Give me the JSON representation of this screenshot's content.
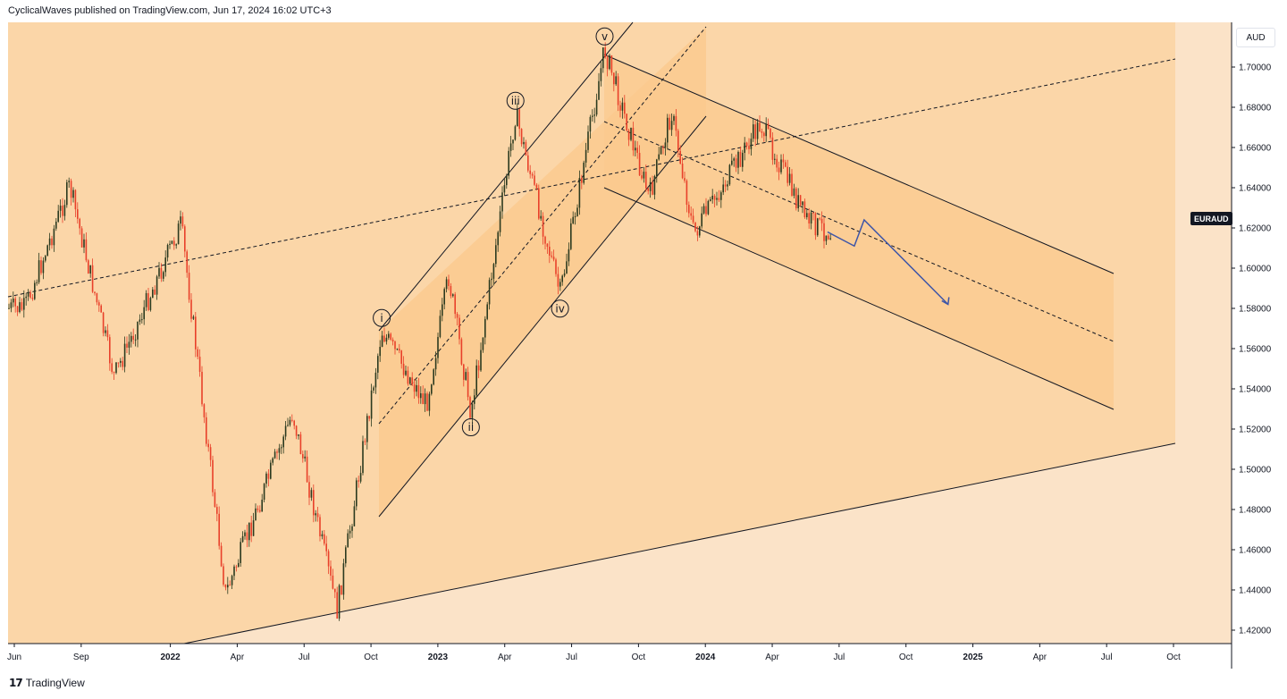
{
  "header": {
    "text": "CyclicalWaves published on TradingView.com, Jun 17, 2024 16:02 UTC+3"
  },
  "footer": {
    "logo_glyph": "17",
    "brand": "TradingView"
  },
  "price_axis": {
    "currency": "AUD",
    "symbol_tag": "EURAUD",
    "labels": [
      "1.70000",
      "1.68000",
      "1.66000",
      "1.64000",
      "1.62000",
      "1.60000",
      "1.58000",
      "1.56000",
      "1.54000",
      "1.52000",
      "1.50000",
      "1.48000",
      "1.46000",
      "1.44000",
      "1.42000"
    ]
  },
  "time_axis": {
    "labels": [
      {
        "text": "Jun",
        "bold": false
      },
      {
        "text": "Sep",
        "bold": false
      },
      {
        "text": "2022",
        "bold": true
      },
      {
        "text": "Apr",
        "bold": false
      },
      {
        "text": "Jul",
        "bold": false
      },
      {
        "text": "Oct",
        "bold": false
      },
      {
        "text": "2023",
        "bold": true
      },
      {
        "text": "Apr",
        "bold": false
      },
      {
        "text": "Jul",
        "bold": false
      },
      {
        "text": "Oct",
        "bold": false
      },
      {
        "text": "2024",
        "bold": true
      },
      {
        "text": "Apr",
        "bold": false
      },
      {
        "text": "Jul",
        "bold": false
      },
      {
        "text": "Oct",
        "bold": false
      },
      {
        "text": "2025",
        "bold": true
      },
      {
        "text": "Apr",
        "bold": false
      },
      {
        "text": "Jul",
        "bold": false
      },
      {
        "text": "Oct",
        "bold": false
      }
    ]
  },
  "wave_labels": [
    "i",
    "ii",
    "iii",
    "iv",
    "v"
  ],
  "colors": {
    "background_light": "#fbe3c8",
    "background_mid": "#fbd6a8",
    "channel_fill": "#fbc98d",
    "candle_up": "#2b3a1f",
    "candle_down": "#e8402a",
    "projection_arrow": "#3d55a8",
    "line": "#131722"
  },
  "chart_data": {
    "type": "candlestick",
    "symbol": "EURAUD",
    "currency": "AUD",
    "ylim": [
      1.41,
      1.72
    ],
    "x_range": [
      "2021-05",
      "2025-10"
    ],
    "swing_points": [
      {
        "date": "2021-06",
        "price": 1.58
      },
      {
        "date": "2021-08",
        "price": 1.641
      },
      {
        "date": "2021-10",
        "price": 1.546
      },
      {
        "date": "2022-01",
        "price": 1.622
      },
      {
        "date": "2022-03",
        "price": 1.438
      },
      {
        "date": "2022-06",
        "price": 1.528
      },
      {
        "date": "2022-08",
        "price": 1.43
      },
      {
        "date": "2022-10",
        "price": 1.569,
        "wave": "i"
      },
      {
        "date": "2022-12",
        "price": 1.532
      },
      {
        "date": "2023-01",
        "price": 1.596
      },
      {
        "date": "2023-02",
        "price": 1.528,
        "wave": "ii"
      },
      {
        "date": "2023-04",
        "price": 1.677,
        "wave": "iii"
      },
      {
        "date": "2023-06",
        "price": 1.587,
        "wave": "iv"
      },
      {
        "date": "2023-08",
        "price": 1.709,
        "wave": "v"
      },
      {
        "date": "2023-10",
        "price": 1.635
      },
      {
        "date": "2023-11",
        "price": 1.678
      },
      {
        "date": "2023-12",
        "price": 1.617
      },
      {
        "date": "2024-03",
        "price": 1.672
      },
      {
        "date": "2024-05",
        "price": 1.625
      },
      {
        "date": "2024-06",
        "price": 1.618
      }
    ],
    "projection_path": [
      {
        "date": "2024-06",
        "price": 1.618
      },
      {
        "date": "2024-07",
        "price": 1.611
      },
      {
        "date": "2024-07",
        "price": 1.624
      },
      {
        "date": "2024-09",
        "price": 1.582
      }
    ]
  }
}
